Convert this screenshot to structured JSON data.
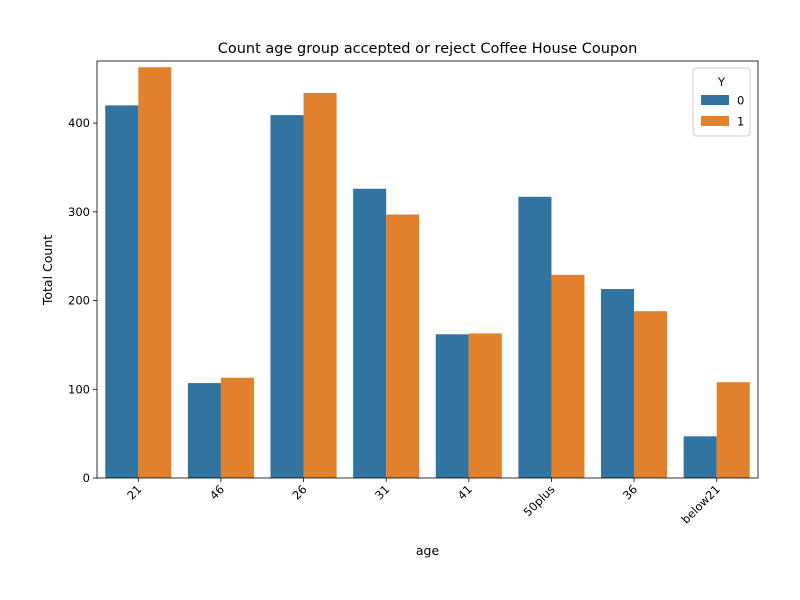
{
  "chart_data": {
    "type": "bar",
    "title": "Count age group accepted or reject Coffee House Coupon",
    "xlabel": "age",
    "ylabel": "Total Count",
    "categories": [
      "21",
      "46",
      "26",
      "31",
      "41",
      "50plus",
      "36",
      "below21"
    ],
    "series": [
      {
        "name": "0",
        "color": "#3274a1",
        "values": [
          420,
          107,
          409,
          326,
          162,
          317,
          213,
          47
        ]
      },
      {
        "name": "1",
        "color": "#e1812c",
        "values": [
          463,
          113,
          434,
          297,
          163,
          229,
          188,
          108
        ]
      }
    ],
    "ylim": [
      0,
      470
    ],
    "yticks": [
      0,
      100,
      200,
      300,
      400
    ],
    "legend": {
      "title": "Y",
      "position": "top-right"
    },
    "grid": false
  }
}
